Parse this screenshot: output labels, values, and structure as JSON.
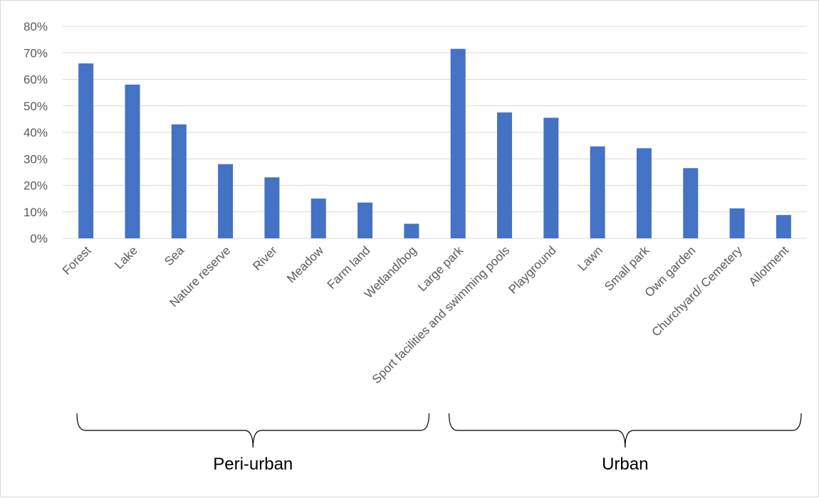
{
  "chart_data": {
    "type": "bar",
    "title": "",
    "xlabel": "",
    "ylabel": "",
    "ylim": [
      0,
      0.8
    ],
    "yticks": [
      "0%",
      "10%",
      "20%",
      "30%",
      "40%",
      "50%",
      "60%",
      "70%",
      "80%"
    ],
    "grid": true,
    "legend": "none",
    "bar_color": "#4472c4",
    "categories": [
      "Forest",
      "Lake",
      "Sea",
      "Nature reserve",
      "River",
      "Meadow",
      "Farm land",
      "Wetland/bog",
      "Large park",
      "Sport facilities and swimming pools",
      "Playground",
      "Lawn",
      "Small park",
      "Own garden",
      "Churchyard/ Cemetery",
      "Allotment"
    ],
    "values": [
      0.66,
      0.58,
      0.43,
      0.28,
      0.23,
      0.15,
      0.135,
      0.055,
      0.715,
      0.475,
      0.455,
      0.347,
      0.34,
      0.265,
      0.113,
      0.088
    ],
    "groups": [
      {
        "label": "Peri-urban",
        "start": 0,
        "end": 7
      },
      {
        "label": "Urban",
        "start": 8,
        "end": 15
      }
    ]
  }
}
